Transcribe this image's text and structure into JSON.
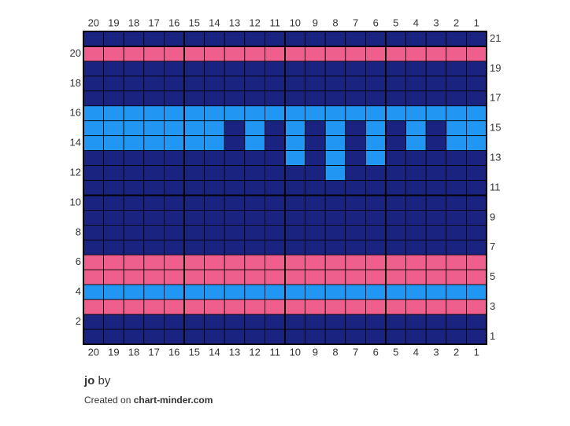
{
  "chart": {
    "columns": [
      20,
      19,
      18,
      17,
      16,
      15,
      14,
      13,
      12,
      11,
      10,
      9,
      8,
      7,
      6,
      5,
      4,
      3,
      2,
      1
    ],
    "row_numbers": [
      21,
      20,
      19,
      18,
      17,
      16,
      15,
      14,
      13,
      12,
      11,
      10,
      9,
      8,
      7,
      6,
      5,
      4,
      3,
      2,
      1
    ],
    "palette": {
      "N": "#1b2380",
      "P": "#ee5f8e",
      "B": "#2196f3"
    },
    "rows": [
      "NNNNNNNNNNNNNNNNNNNN",
      "PPPPPPPPPPPPPPPPPPPP",
      "NNNNNNNNNNNNNNNNNNNN",
      "NNNNNNNNNNNNNNNNNNNN",
      "NNNNNNNNNNNNNNNNNNNN",
      "BBBBBBBBBBBBBBBBBBBB",
      "BBBBBBBNBNBNBNBNBNBB",
      "BBBBBBBNBNBNBNBNBNBB",
      "NNNNNNNNNNBNBNBNNNNN",
      "NNNNNNNNNNNNBNNNNNNN",
      "NNNNNNNNNNNNNNNNNNNN",
      "NNNNNNNNNNNNNNNNNNNN",
      "NNNNNNNNNNNNNNNNNNNN",
      "NNNNNNNNNNNNNNNNNNNN",
      "NNNNNNNNNNNNNNNNNNNN",
      "PPPPPPPPPPPPPPPPPPPP",
      "PPPPPPPPPPPPPPPPPPPP",
      "BBBBBBBBBBBBBBBBBBBB",
      "PPPPPPPPPPPPPPPPPPPP",
      "NNNNNNNNNNNNNNNNNNNN",
      "NNNNNNNNNNNNNNNNNNNN"
    ]
  },
  "footer": {
    "title": "jo",
    "by": "by",
    "created": "Created on",
    "site": "chart-minder.com"
  }
}
